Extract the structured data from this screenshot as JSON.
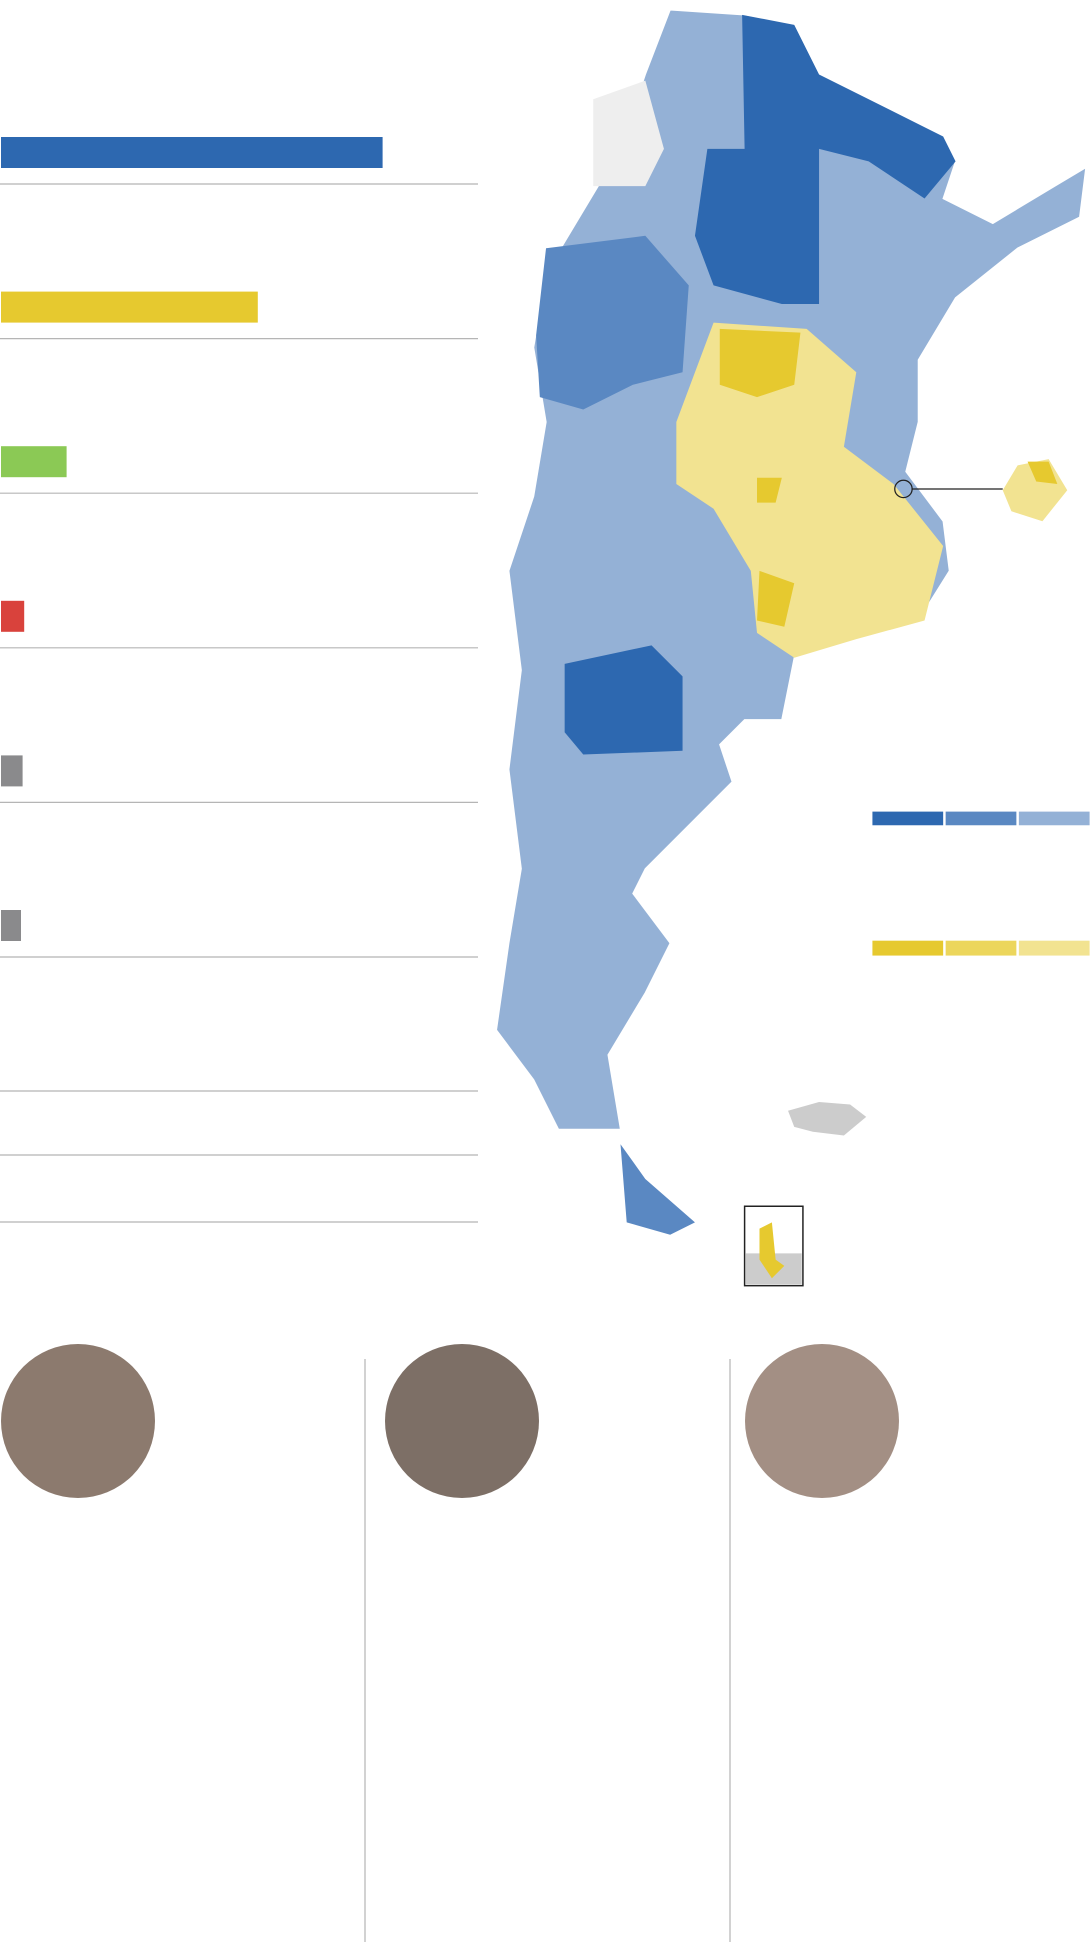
{
  "chart_data": {
    "type": "bar",
    "orientation": "horizontal",
    "categories": [
      null,
      null,
      null,
      null,
      null,
      null
    ],
    "values": [
      47.7,
      32.1,
      8.2,
      2.9,
      2.7,
      2.5
    ],
    "colors": [
      "#2d68b0",
      "#e6c92f",
      "#8bc955",
      "#d9423c",
      "#8a8a8c",
      "#8a8a8c"
    ],
    "xlim": [
      0,
      60
    ]
  }
}
